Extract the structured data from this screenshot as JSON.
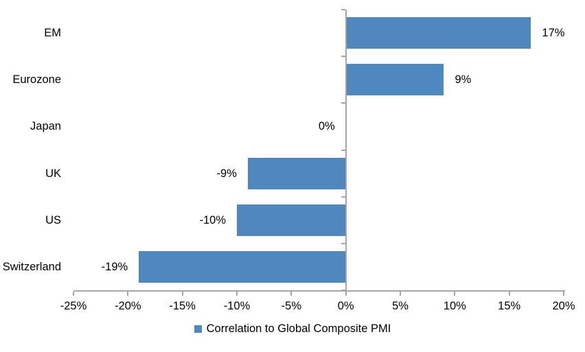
{
  "chart_data": {
    "type": "bar",
    "orientation": "horizontal",
    "title": "",
    "categories": [
      "EM",
      "Eurozone",
      "Japan",
      "UK",
      "US",
      "Switzerland"
    ],
    "series": [
      {
        "name": "Correlation to Global Composite PMI",
        "values": [
          17,
          9,
          0,
          -9,
          -10,
          -19
        ],
        "data_labels": [
          "17%",
          "9%",
          "0%",
          "-9%",
          "-10%",
          "-19%"
        ]
      }
    ],
    "xlabel": "",
    "ylabel": "",
    "xlim": [
      -25,
      20
    ],
    "x_tick_step": 5,
    "x_ticks": [
      -25,
      -20,
      -15,
      -10,
      -5,
      0,
      5,
      10,
      15,
      20
    ],
    "x_tick_labels": [
      "-25%",
      "-20%",
      "-15%",
      "-10%",
      "-5%",
      "0%",
      "5%",
      "10%",
      "15%",
      "20%"
    ],
    "grid": false,
    "legend_position": "bottom-center",
    "colors": {
      "bar": "#4E88BE",
      "axis": "#A6A6A6",
      "text": "#000000",
      "background": "#FFFFFF"
    }
  },
  "legend": {
    "marker_icon": "square-icon",
    "label": "Correlation to Global Composite PMI"
  }
}
